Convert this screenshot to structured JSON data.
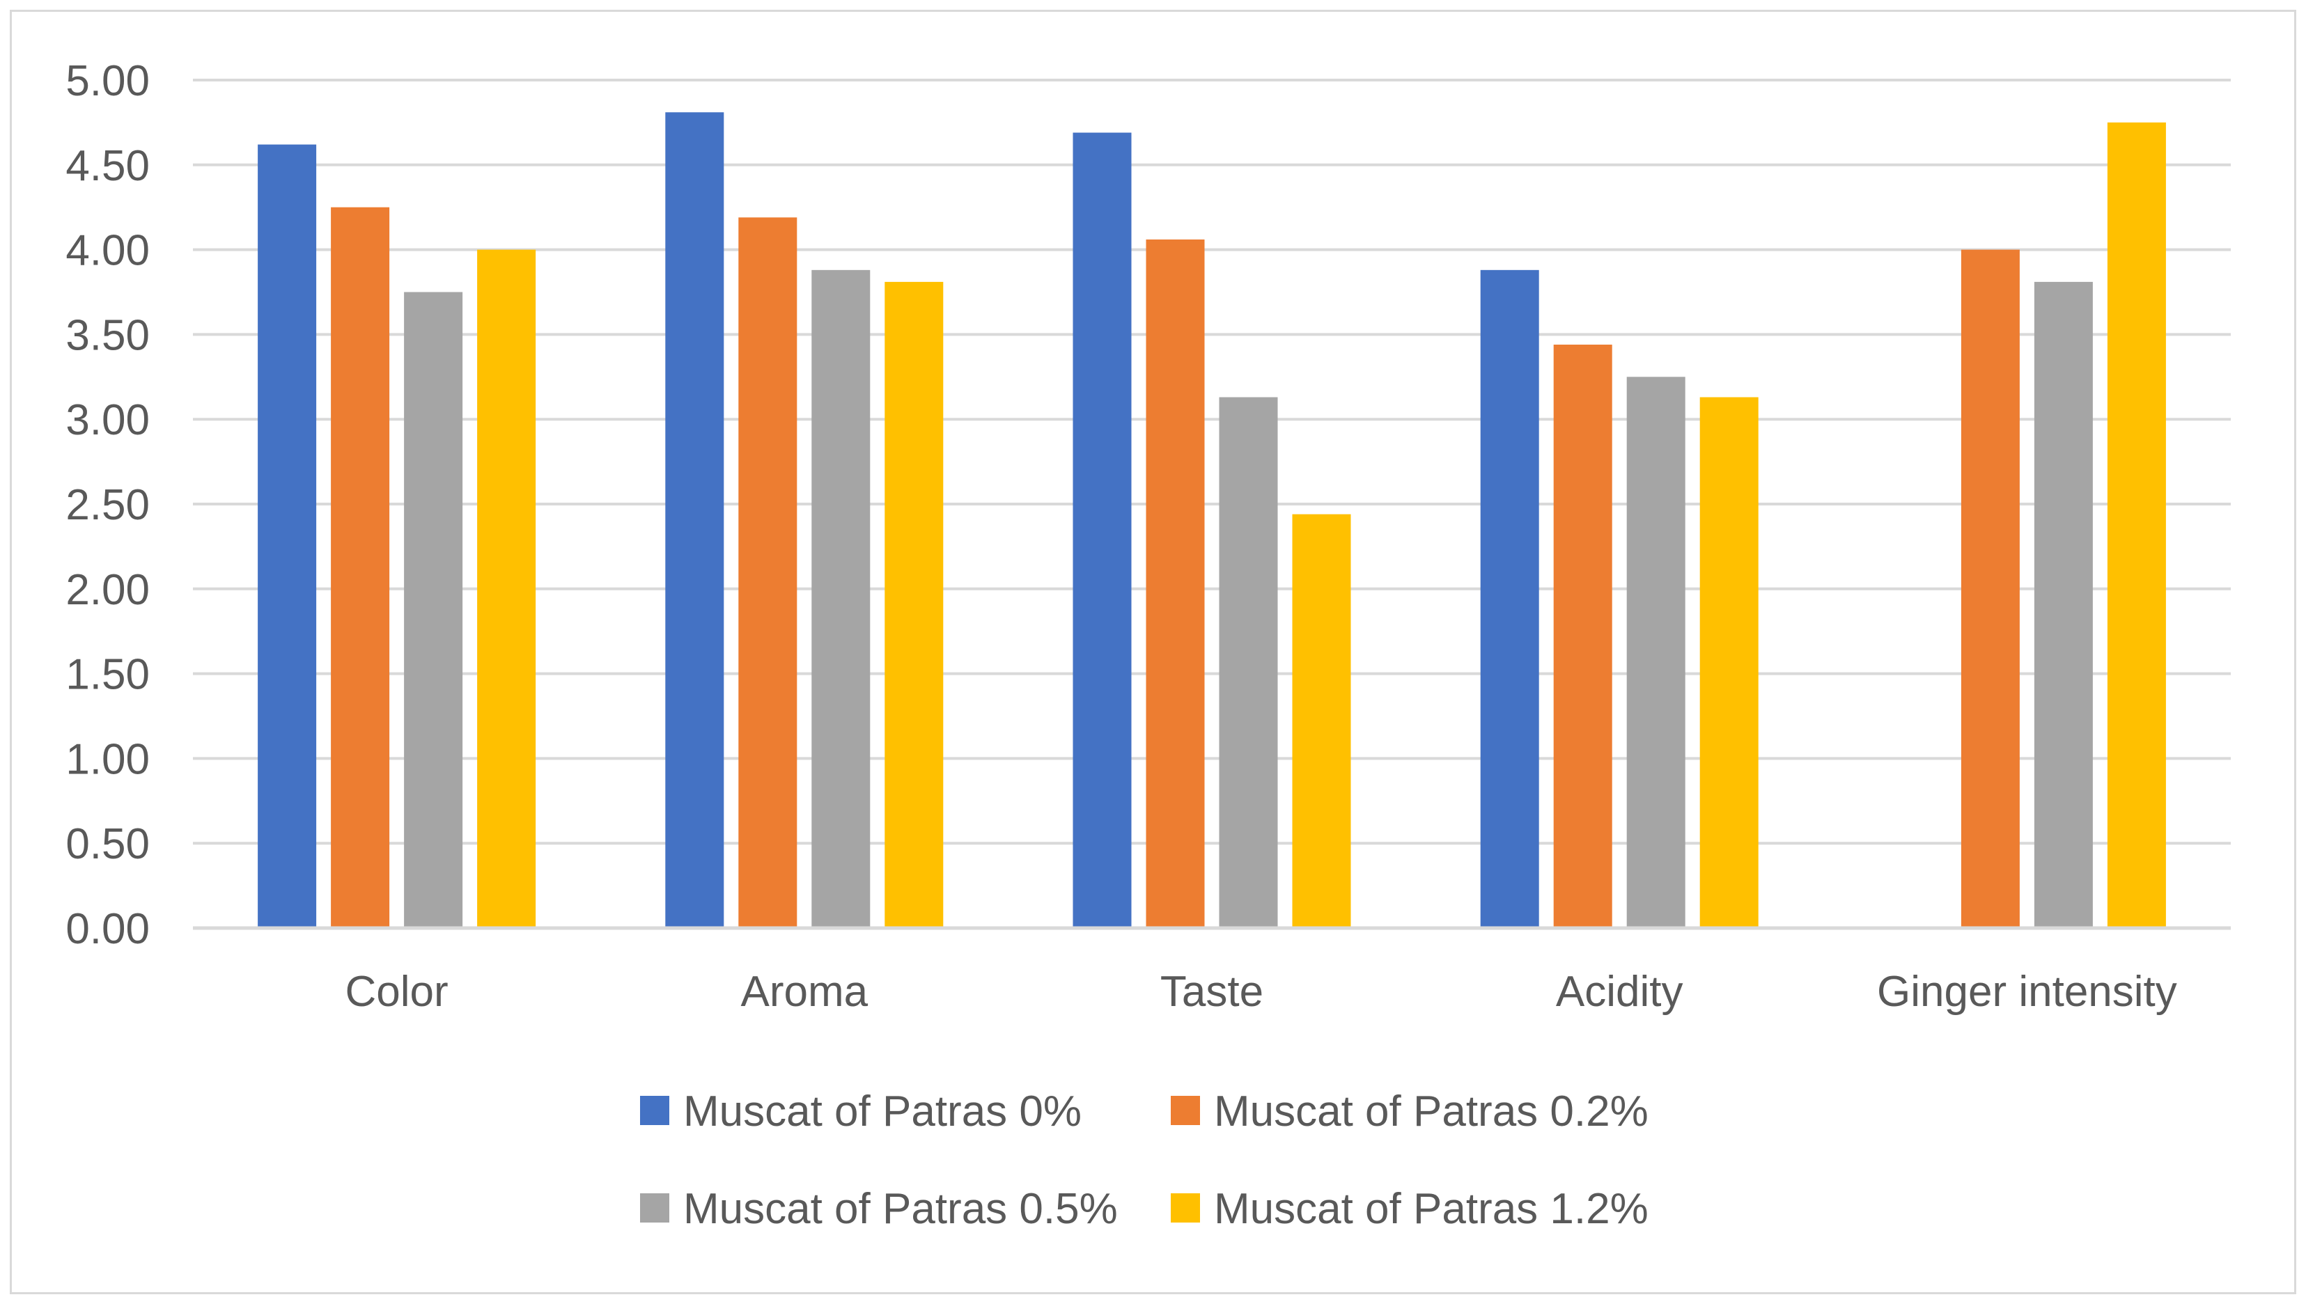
{
  "chart_data": {
    "type": "bar",
    "title": "",
    "xlabel": "",
    "ylabel": "",
    "ylim": [
      0,
      5
    ],
    "ytick_step": 0.5,
    "ytick_labels": [
      "0.00",
      "0.50",
      "1.00",
      "1.50",
      "2.00",
      "2.50",
      "3.00",
      "3.50",
      "4.00",
      "4.50",
      "5.00"
    ],
    "grid": true,
    "legend_position": "bottom",
    "categories": [
      "Color",
      "Aroma",
      "Taste",
      "Acidity",
      "Ginger intensity"
    ],
    "series": [
      {
        "name": "Muscat of Patras 0%",
        "color": "#4472C4",
        "values": [
          4.62,
          4.81,
          4.69,
          3.88,
          0.0
        ]
      },
      {
        "name": "Muscat of Patras 0.2%",
        "color": "#ED7D31",
        "values": [
          4.25,
          4.19,
          4.06,
          3.44,
          4.0
        ]
      },
      {
        "name": "Muscat of Patras 0.5%",
        "color": "#A5A5A5",
        "values": [
          3.75,
          3.88,
          3.13,
          3.25,
          3.81
        ]
      },
      {
        "name": "Muscat of Patras 1.2%",
        "color": "#FFC000",
        "values": [
          4.0,
          3.81,
          2.44,
          3.13,
          4.75
        ]
      }
    ]
  }
}
